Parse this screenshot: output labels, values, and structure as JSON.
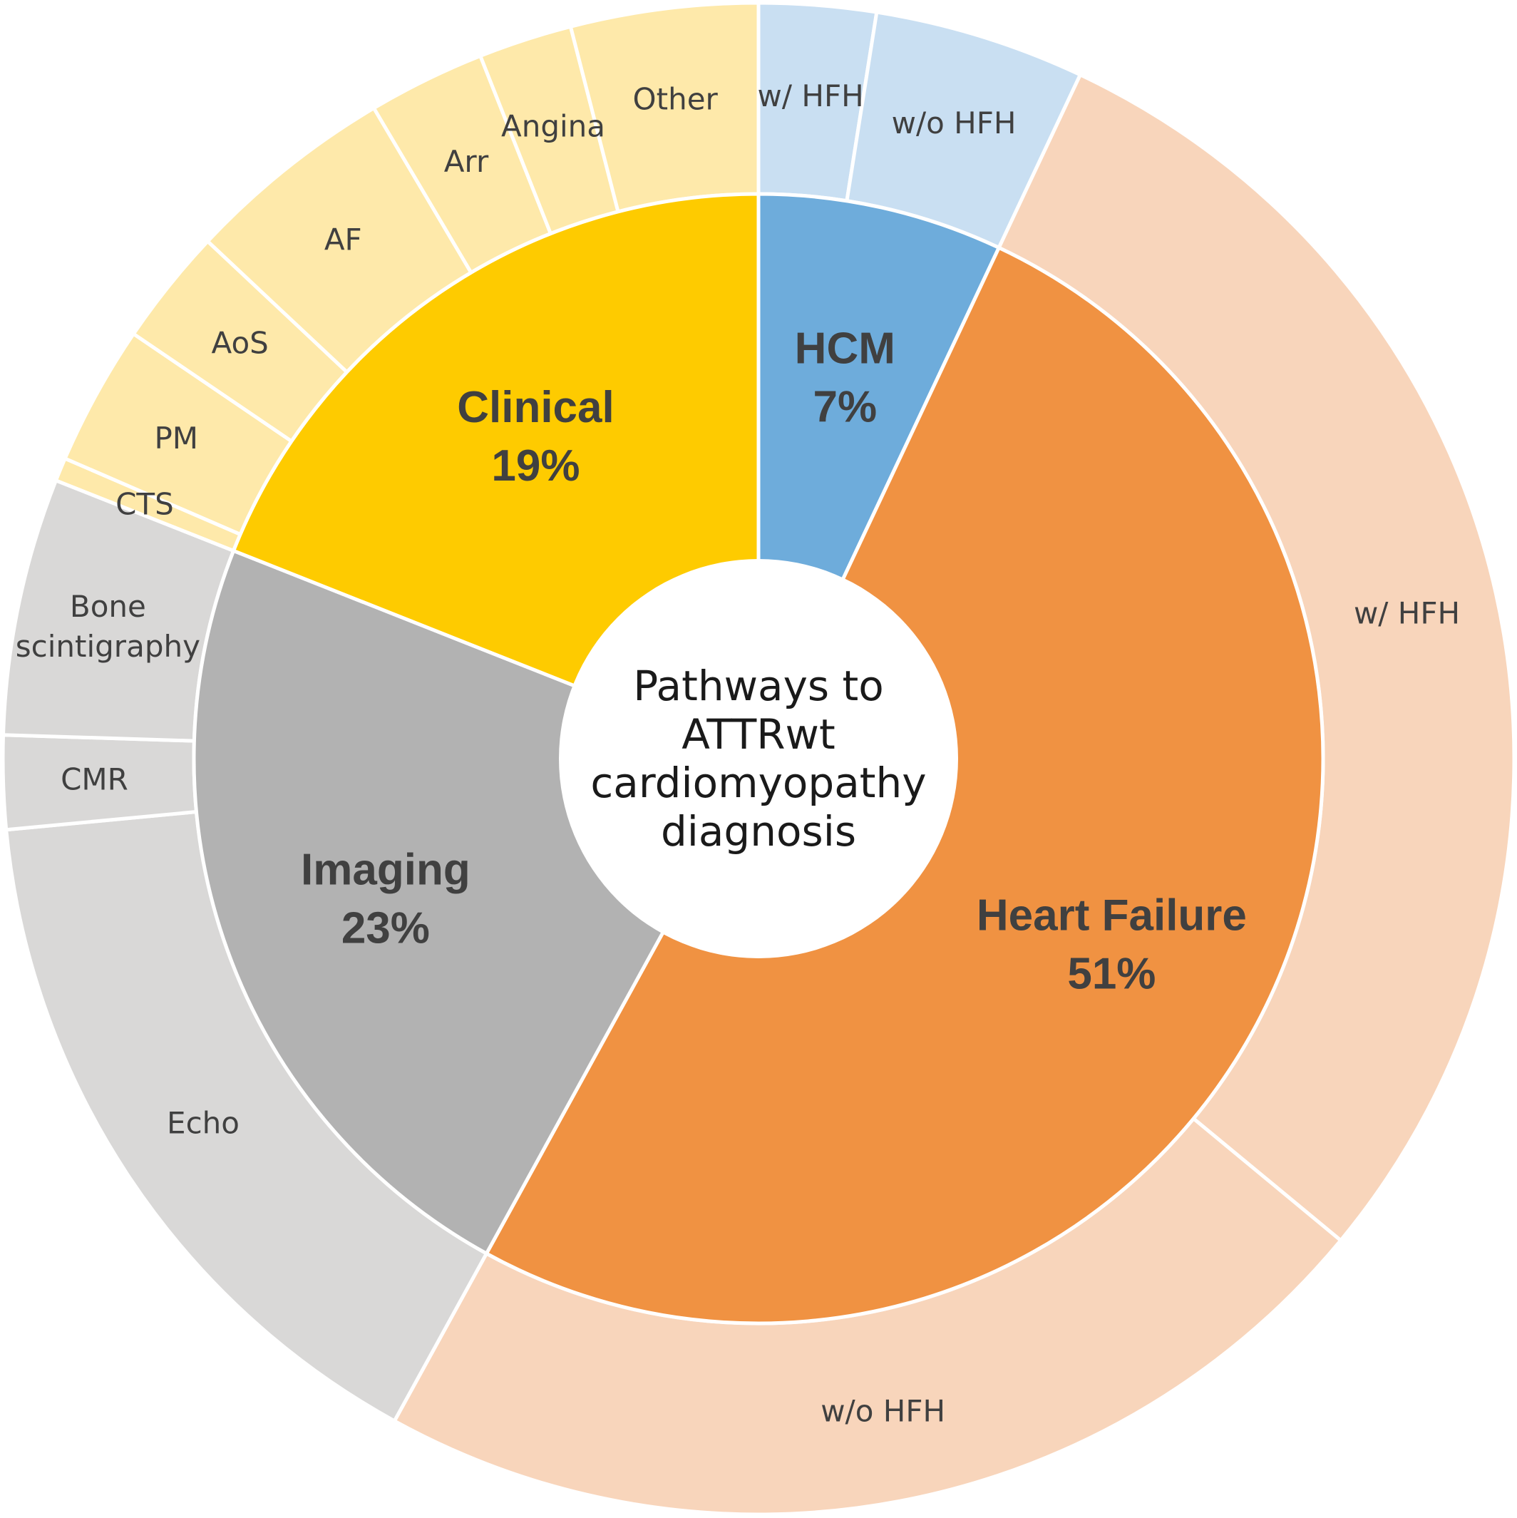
{
  "chart_data": {
    "type": "sunburst",
    "center_label": [
      "Pathways to",
      "ATTRwt",
      "cardiomyopathy",
      "diagnosis"
    ],
    "inner_ring": [
      {
        "label": "HCM",
        "value_label": "7%",
        "value": 7,
        "color": "#6EACDB"
      },
      {
        "label": "Heart Failure",
        "value_label": "51%",
        "value": 51,
        "color": "#F09242"
      },
      {
        "label": "Imaging",
        "value_label": "23%",
        "value": 23,
        "color": "#B2B2B2"
      },
      {
        "label": "Clinical",
        "value_label": "19%",
        "value": 19,
        "color": "#FECB00"
      }
    ],
    "outer_ring": [
      {
        "parent": "HCM",
        "label": "w/ HFH",
        "value": 2.5,
        "color": "#C9DFF2"
      },
      {
        "parent": "HCM",
        "label": "w/o HFH",
        "value": 4.5,
        "color": "#C9DFF2"
      },
      {
        "parent": "Heart Failure",
        "label": "w/ HFH",
        "value": 29,
        "color": "#F8D5BB"
      },
      {
        "parent": "Heart Failure",
        "label": "w/o HFH",
        "value": 22,
        "color": "#F8D5BB"
      },
      {
        "parent": "Imaging",
        "label": "Echo",
        "value": 15.5,
        "color": "#D9D8D7"
      },
      {
        "parent": "Imaging",
        "label": "CMR",
        "value": 2,
        "color": "#D9D8D7"
      },
      {
        "parent": "Imaging",
        "label": "Bone scintigraphy",
        "value": 5.5,
        "color": "#D9D8D7"
      },
      {
        "parent": "Clinical",
        "label": "CTS",
        "value": 0.5,
        "color": "#FEE9AA"
      },
      {
        "parent": "Clinical",
        "label": "PM",
        "value": 3,
        "color": "#FEE9AA"
      },
      {
        "parent": "Clinical",
        "label": "AoS",
        "value": 2.5,
        "color": "#FEE9AA"
      },
      {
        "parent": "Clinical",
        "label": "AF",
        "value": 4.5,
        "color": "#FEE9AA"
      },
      {
        "parent": "Clinical",
        "label": "Arr",
        "value": 2.5,
        "color": "#FEE9AA"
      },
      {
        "parent": "Clinical",
        "label": "Angina",
        "value": 2,
        "color": "#FEE9AA"
      },
      {
        "parent": "Clinical",
        "label": "Other",
        "value": 4,
        "color": "#FEE9AA"
      }
    ]
  }
}
